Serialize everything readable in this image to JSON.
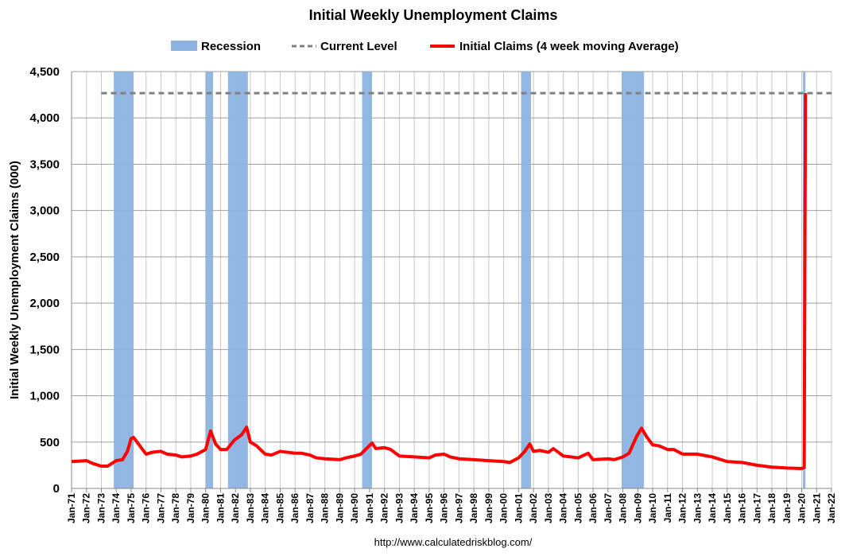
{
  "chart_data": {
    "type": "line",
    "title": "Initial Weekly Unemployment Claims",
    "y_label": "Initial Weekly Unemployment Claims (000)",
    "source": "http://www.calculatedriskblog.com/",
    "grid": true,
    "xlim": [
      "1971-01",
      "2022-01"
    ],
    "ylim": [
      0,
      4500
    ],
    "yticks": [
      0,
      {
        "value": 500,
        "label": "500"
      },
      {
        "value": 1000,
        "label": "1,000"
      },
      {
        "value": 1500,
        "label": "1,500"
      },
      {
        "value": 2000,
        "label": "2,000"
      },
      {
        "value": 2500,
        "label": "2,500"
      },
      {
        "value": 3000,
        "label": "3,000"
      },
      {
        "value": 3500,
        "label": "3,500"
      },
      {
        "value": 4000,
        "label": "4,000"
      },
      {
        "value": 4500,
        "label": "4,500"
      }
    ],
    "xticks": [
      {
        "value": "1971-01",
        "label": "Jan-71"
      },
      {
        "value": "1972-01",
        "label": "Jan-72"
      },
      {
        "value": "1973-01",
        "label": "Jan-73"
      },
      {
        "value": "1974-01",
        "label": "Jan-74"
      },
      {
        "value": "1975-01",
        "label": "Jan-75"
      },
      {
        "value": "1976-01",
        "label": "Jan-76"
      },
      {
        "value": "1977-01",
        "label": "Jan-77"
      },
      {
        "value": "1978-01",
        "label": "Jan-78"
      },
      {
        "value": "1979-01",
        "label": "Jan-79"
      },
      {
        "value": "1980-01",
        "label": "Jan-80"
      },
      {
        "value": "1981-01",
        "label": "Jan-81"
      },
      {
        "value": "1982-01",
        "label": "Jan-82"
      },
      {
        "value": "1983-01",
        "label": "Jan-83"
      },
      {
        "value": "1984-01",
        "label": "Jan-84"
      },
      {
        "value": "1985-01",
        "label": "Jan-85"
      },
      {
        "value": "1986-01",
        "label": "Jan-86"
      },
      {
        "value": "1987-01",
        "label": "Jan-87"
      },
      {
        "value": "1988-01",
        "label": "Jan-88"
      },
      {
        "value": "1989-01",
        "label": "Jan-89"
      },
      {
        "value": "1990-01",
        "label": "Jan-90"
      },
      {
        "value": "1991-01",
        "label": "Jan-91"
      },
      {
        "value": "1992-01",
        "label": "Jan-92"
      },
      {
        "value": "1993-01",
        "label": "Jan-93"
      },
      {
        "value": "1994-01",
        "label": "Jan-94"
      },
      {
        "value": "1995-01",
        "label": "Jan-95"
      },
      {
        "value": "1996-01",
        "label": "Jan-96"
      },
      {
        "value": "1997-01",
        "label": "Jan-97"
      },
      {
        "value": "1998-01",
        "label": "Jan-98"
      },
      {
        "value": "1999-01",
        "label": "Jan-99"
      },
      {
        "value": "2000-01",
        "label": "Jan-00"
      },
      {
        "value": "2001-01",
        "label": "Jan-01"
      },
      {
        "value": "2002-01",
        "label": "Jan-02"
      },
      {
        "value": "2003-01",
        "label": "Jan-03"
      },
      {
        "value": "2004-01",
        "label": "Jan-04"
      },
      {
        "value": "2005-01",
        "label": "Jan-05"
      },
      {
        "value": "2006-01",
        "label": "Jan-06"
      },
      {
        "value": "2007-01",
        "label": "Jan-07"
      },
      {
        "value": "2008-01",
        "label": "Jan-08"
      },
      {
        "value": "2009-01",
        "label": "Jan-09"
      },
      {
        "value": "2010-01",
        "label": "Jan-10"
      },
      {
        "value": "2011-01",
        "label": "Jan-11"
      },
      {
        "value": "2012-01",
        "label": "Jan-12"
      },
      {
        "value": "2013-01",
        "label": "Jan-13"
      },
      {
        "value": "2014-01",
        "label": "Jan-14"
      },
      {
        "value": "2015-01",
        "label": "Jan-15"
      },
      {
        "value": "2016-01",
        "label": "Jan-16"
      },
      {
        "value": "2017-01",
        "label": "Jan-17"
      },
      {
        "value": "2018-01",
        "label": "Jan-18"
      },
      {
        "value": "2019-01",
        "label": "Jan-19"
      },
      {
        "value": "2020-01",
        "label": "Jan-20"
      },
      {
        "value": "2021-01",
        "label": "Jan-21"
      },
      {
        "value": "2022-01",
        "label": "Jan-22"
      }
    ],
    "recessions": {
      "name": "Recession",
      "color": "#8db3e2",
      "periods": [
        {
          "start": "1973-11",
          "end": "1975-03"
        },
        {
          "start": "1980-01",
          "end": "1980-07"
        },
        {
          "start": "1981-07",
          "end": "1982-11"
        },
        {
          "start": "1990-07",
          "end": "1991-03"
        },
        {
          "start": "2001-03",
          "end": "2001-11"
        },
        {
          "start": "2007-12",
          "end": "2009-06"
        },
        {
          "start": "2020-02",
          "end": "2020-04"
        }
      ]
    },
    "reference_line": {
      "name": "Current Level",
      "color": "#808080",
      "value": 4267,
      "start": "1973-01",
      "end": "2022-01"
    },
    "series": [
      {
        "name": "Initial Claims (4 week moving Average)",
        "color": "#ff0000",
        "x": [
          "1971-01",
          "1972-01",
          "1972-06",
          "1973-01",
          "1973-06",
          "1974-01",
          "1974-06",
          "1974-10",
          "1975-01",
          "1975-03",
          "1975-08",
          "1976-01",
          "1976-06",
          "1977-01",
          "1977-06",
          "1978-01",
          "1978-06",
          "1979-01",
          "1979-06",
          "1980-01",
          "1980-05",
          "1980-09",
          "1981-01",
          "1981-06",
          "1981-12",
          "1982-06",
          "1982-10",
          "1983-01",
          "1983-06",
          "1984-01",
          "1984-06",
          "1985-01",
          "1986-01",
          "1986-06",
          "1987-01",
          "1987-06",
          "1988-01",
          "1989-01",
          "1989-06",
          "1990-01",
          "1990-06",
          "1990-12",
          "1991-03",
          "1991-06",
          "1992-01",
          "1992-06",
          "1993-01",
          "1994-01",
          "1995-01",
          "1995-06",
          "1996-01",
          "1996-06",
          "1997-01",
          "1998-01",
          "1999-01",
          "2000-01",
          "2000-06",
          "2001-01",
          "2001-06",
          "2001-10",
          "2002-01",
          "2002-06",
          "2003-01",
          "2003-05",
          "2004-01",
          "2005-01",
          "2005-09",
          "2006-01",
          "2007-01",
          "2007-06",
          "2008-01",
          "2008-06",
          "2008-12",
          "2009-04",
          "2009-08",
          "2010-01",
          "2010-06",
          "2011-01",
          "2011-06",
          "2012-01",
          "2013-01",
          "2014-01",
          "2015-01",
          "2016-01",
          "2017-01",
          "2018-01",
          "2019-01",
          "2020-01",
          "2020-03",
          "2020-04"
        ],
        "values": [
          290,
          300,
          270,
          240,
          240,
          300,
          310,
          400,
          540,
          550,
          460,
          370,
          390,
          400,
          370,
          360,
          340,
          350,
          370,
          420,
          620,
          480,
          420,
          420,
          520,
          580,
          660,
          500,
          460,
          370,
          360,
          400,
          380,
          380,
          360,
          330,
          320,
          310,
          330,
          350,
          370,
          450,
          490,
          430,
          440,
          420,
          350,
          340,
          330,
          360,
          370,
          340,
          320,
          310,
          300,
          290,
          280,
          330,
          400,
          480,
          400,
          410,
          390,
          430,
          350,
          330,
          380,
          310,
          320,
          310,
          340,
          380,
          560,
          650,
          560,
          470,
          460,
          420,
          420,
          370,
          370,
          340,
          290,
          280,
          250,
          230,
          220,
          215,
          225,
          4267
        ]
      }
    ]
  }
}
